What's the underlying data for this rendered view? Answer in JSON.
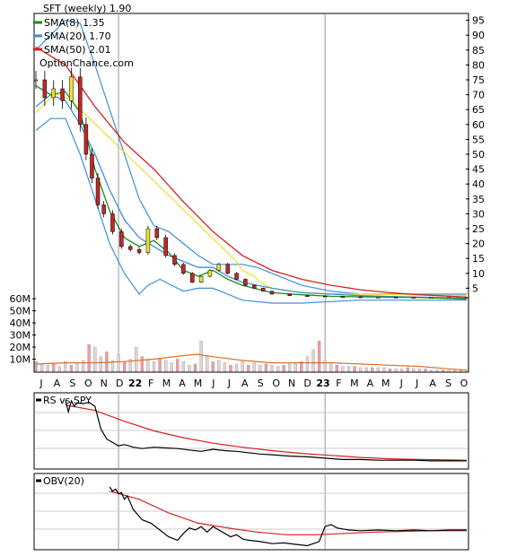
{
  "chart_data": {
    "type": "line",
    "header": {
      "ticker_title": "SFT (weekly) 1.90",
      "site": "OptionChance.com"
    },
    "legend": [
      {
        "label": "SMA(8) 1.35",
        "color": "#1a8a1a"
      },
      {
        "label": "SMA(20) 1.70",
        "color": "#3d8fd9"
      },
      {
        "label": "SMA(50) 2.01",
        "color": "#d62020"
      }
    ],
    "price_axis": {
      "ticks": [
        "95",
        "90",
        "85",
        "80",
        "75",
        "70",
        "65",
        "60",
        "55",
        "50",
        "45",
        "40",
        "35",
        "30",
        "25",
        "20",
        "15",
        "10",
        "5"
      ],
      "ylim": [
        0,
        97
      ]
    },
    "volume_axis": {
      "ticks": [
        "60M",
        "50M",
        "40M",
        "30M",
        "20M",
        "10M"
      ],
      "ylim": [
        0,
        66
      ]
    },
    "x_labels": [
      "J",
      "A",
      "S",
      "O",
      "N",
      "D",
      "22",
      "F",
      "M",
      "A",
      "M",
      "J",
      "J",
      "A",
      "S",
      "O",
      "N",
      "D",
      "23",
      "F",
      "M",
      "A",
      "M",
      "J",
      "J",
      "A",
      "S",
      "O"
    ],
    "price_series": {
      "week": [
        0,
        3,
        6,
        9,
        12,
        15,
        17,
        19,
        21,
        23,
        26,
        29,
        32,
        35,
        38,
        41,
        44,
        47,
        50,
        53,
        56,
        59,
        62,
        65,
        68,
        71,
        74,
        77,
        80,
        86,
        92,
        98,
        104,
        110,
        116,
        122,
        128,
        134,
        140,
        146
      ],
      "close": [
        75,
        69,
        72,
        68,
        76,
        60,
        50,
        42,
        33,
        30,
        24,
        19,
        18,
        17,
        25,
        22,
        16,
        13,
        10,
        7,
        9,
        11,
        13,
        10,
        8,
        6,
        5,
        4,
        3,
        2.5,
        2.4,
        2.2,
        2.1,
        2.0,
        2.0,
        1.9,
        1.9,
        1.9,
        1.9,
        1.9
      ]
    },
    "sma8": {
      "week": [
        0,
        5,
        10,
        15,
        20,
        25,
        30,
        35,
        40,
        45,
        50,
        55,
        60,
        65,
        70,
        80,
        90,
        100,
        110,
        120,
        130,
        146
      ],
      "value": [
        73,
        70,
        71,
        64,
        45,
        31,
        22,
        19,
        21,
        17,
        11,
        9,
        11,
        8,
        6,
        3.5,
        2.8,
        2.3,
        2.1,
        2.0,
        1.9,
        1.35
      ]
    },
    "sma20": {
      "week": [
        0,
        5,
        10,
        15,
        20,
        25,
        30,
        35,
        40,
        45,
        50,
        55,
        60,
        65,
        70,
        75,
        80,
        90,
        100,
        110,
        120,
        130,
        146
      ],
      "value": [
        66,
        70,
        68,
        60,
        50,
        38,
        28,
        22,
        19,
        16,
        14,
        12,
        12,
        9,
        7,
        6,
        5,
        3.5,
        3.0,
        2.5,
        2.2,
        2.0,
        1.7
      ]
    },
    "sma50": {
      "week": [
        0,
        10,
        20,
        30,
        40,
        50,
        60,
        70,
        80,
        90,
        100,
        110,
        120,
        130,
        146
      ],
      "value": [
        86,
        80,
        66,
        54,
        45,
        34,
        24,
        16,
        11,
        8,
        6,
        4.5,
        3.5,
        2.8,
        2.01
      ]
    },
    "bollinger_upper": {
      "week": [
        0,
        10,
        15,
        20,
        25,
        30,
        35,
        40,
        45,
        50,
        55,
        60,
        65,
        70,
        75,
        80,
        90,
        100,
        110,
        130,
        146
      ],
      "value": [
        85,
        95,
        94,
        80,
        65,
        50,
        35,
        26,
        24,
        20,
        16,
        13,
        13,
        13,
        12,
        10,
        6,
        4,
        3,
        3,
        3
      ]
    },
    "bollinger_lower": {
      "week": [
        0,
        5,
        10,
        15,
        20,
        25,
        30,
        35,
        38,
        42,
        46,
        50,
        55,
        60,
        65,
        70,
        80,
        90,
        100,
        110,
        130,
        146
      ],
      "value": [
        58,
        62,
        62,
        50,
        35,
        20,
        10,
        3,
        6,
        8,
        6,
        4,
        5,
        5,
        3,
        1,
        0,
        0,
        0.5,
        1,
        1,
        1
      ]
    },
    "yellow_band": {
      "week": [
        0,
        2,
        4,
        6,
        8,
        10,
        12,
        68,
        70,
        72,
        74,
        76,
        78,
        80,
        86,
        92,
        98,
        110,
        125,
        146
      ],
      "value": [
        64,
        66,
        68,
        70,
        70,
        69,
        68,
        14,
        11,
        10,
        9,
        7,
        6,
        5,
        4,
        3.5,
        3.2,
        3.0,
        2.8,
        2.6
      ]
    },
    "volume": {
      "week": [
        0,
        2,
        4,
        6,
        8,
        10,
        12,
        14,
        16,
        18,
        20,
        22,
        24,
        26,
        28,
        30,
        32,
        34,
        36,
        38,
        40,
        42,
        44,
        46,
        48,
        50,
        52,
        54,
        56,
        58,
        60,
        62,
        64,
        66,
        68,
        70,
        72,
        74,
        76,
        78,
        80,
        82,
        84,
        86,
        88,
        90,
        92,
        94,
        96,
        98,
        100,
        102,
        104,
        106,
        108,
        110,
        112,
        114,
        116,
        118,
        120,
        122,
        124,
        126,
        128,
        130,
        132,
        134,
        136,
        138,
        140,
        142,
        144,
        146
      ],
      "value": [
        8,
        6,
        5,
        7,
        4,
        8,
        5,
        6,
        9,
        22,
        20,
        12,
        16,
        9,
        14,
        8,
        10,
        20,
        12,
        10,
        8,
        11,
        9,
        7,
        10,
        8,
        5,
        6,
        25,
        12,
        8,
        9,
        7,
        5,
        6,
        8,
        5,
        7,
        5,
        6,
        5,
        4,
        5,
        6,
        6,
        8,
        12,
        18,
        25,
        9,
        6,
        5,
        4,
        4,
        4,
        3,
        3,
        3,
        3,
        3,
        2,
        2,
        2,
        3,
        2,
        2,
        2,
        1,
        1,
        1,
        1,
        1,
        1,
        1
      ]
    },
    "volume_avg": {
      "week": [
        0,
        10,
        20,
        30,
        40,
        50,
        55,
        60,
        70,
        80,
        90,
        100,
        110,
        120,
        130,
        140,
        146
      ],
      "value": [
        6,
        7,
        7,
        8,
        10,
        13,
        14,
        12,
        9,
        7,
        7,
        7,
        6,
        5,
        4,
        2,
        1
      ]
    },
    "rs_panel": {
      "label": "RS vs SPY",
      "week": [
        10,
        11,
        12,
        13,
        14,
        16,
        18,
        20,
        22,
        24,
        26,
        28,
        30,
        33,
        36,
        40,
        44,
        48,
        52,
        56,
        60,
        64,
        68,
        72,
        76,
        80,
        86,
        92,
        98,
        104,
        110,
        116,
        122,
        128,
        134,
        140,
        146
      ],
      "value": [
        97,
        80,
        96,
        88,
        93,
        92,
        94,
        88,
        55,
        40,
        35,
        30,
        32,
        28,
        26,
        28,
        27,
        26,
        24,
        22,
        25,
        23,
        22,
        20,
        18,
        17,
        15,
        14,
        12,
        10,
        10,
        9,
        9,
        9,
        8,
        8,
        8
      ],
      "avg_week": [
        10,
        20,
        30,
        40,
        50,
        60,
        70,
        80,
        90,
        100,
        110,
        120,
        130,
        146
      ],
      "avg_value": [
        90,
        82,
        66,
        52,
        42,
        34,
        28,
        23,
        19,
        16,
        13,
        11,
        10,
        9
      ]
    },
    "obv_panel": {
      "label": "OBV(20)",
      "week": [
        25,
        26,
        27,
        28,
        29,
        30,
        31,
        33,
        36,
        39,
        42,
        45,
        48,
        50,
        52,
        54,
        56,
        58,
        60,
        62,
        64,
        66,
        68,
        70,
        72,
        76,
        80,
        84,
        88,
        92,
        96,
        98,
        100,
        102,
        106,
        110,
        116,
        122,
        128,
        134,
        140,
        146
      ],
      "value": [
        88,
        82,
        85,
        78,
        80,
        70,
        75,
        55,
        40,
        35,
        25,
        15,
        10,
        20,
        28,
        25,
        30,
        22,
        30,
        25,
        20,
        15,
        18,
        12,
        10,
        8,
        5,
        6,
        4,
        2,
        8,
        30,
        33,
        28,
        25,
        24,
        25,
        24,
        25,
        24,
        25,
        25
      ],
      "avg_week": [
        25,
        35,
        45,
        55,
        65,
        75,
        85,
        95,
        105,
        115,
        125,
        135,
        146
      ],
      "avg_value": [
        82,
        70,
        50,
        35,
        28,
        22,
        18,
        18,
        20,
        22,
        23,
        24,
        24
      ]
    }
  }
}
